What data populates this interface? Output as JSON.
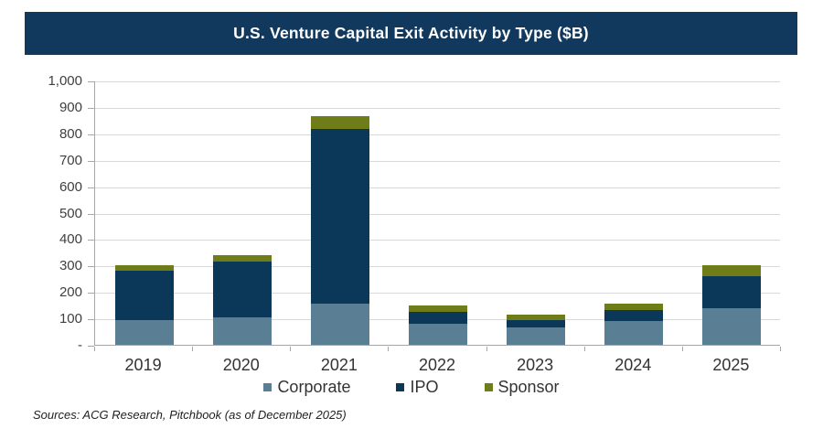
{
  "title_bar": {
    "title": "U.S. Venture Capital Exit Activity by Type ($B)",
    "bg_color": "#11395e",
    "text_color": "#ffffff"
  },
  "colors": {
    "title_bar": "#11395e",
    "corporate": "#5a7e93",
    "ipo": "#0b3859",
    "sponsor": "#6e7d17",
    "gridline": "#d9d9d9",
    "axis": "#a6a6a6",
    "tick_text": "#3f3f3f"
  },
  "chart_data": {
    "type": "bar",
    "stacked": true,
    "title": "U.S. Venture Capital Exit Activity by Type ($B)",
    "categories": [
      "2019",
      "2020",
      "2021",
      "2022",
      "2023",
      "2024",
      "2025"
    ],
    "series": [
      {
        "name": "Corporate",
        "color": "#5a7e93",
        "values": [
          95,
          105,
          155,
          80,
          65,
          90,
          140
        ]
      },
      {
        "name": "IPO",
        "color": "#0b3859",
        "values": [
          185,
          210,
          660,
          45,
          30,
          40,
          120
        ]
      },
      {
        "name": "Sponsor",
        "color": "#6e7d17",
        "values": [
          20,
          25,
          50,
          25,
          20,
          25,
          40
        ]
      }
    ],
    "stack_totals": [
      300,
      340,
      865,
      150,
      115,
      155,
      300
    ],
    "xlabel": "",
    "ylabel": "",
    "ylim": [
      0,
      1000
    ],
    "y_tick_labels": [
      "1,000",
      "900",
      "800",
      "700",
      "600",
      "500",
      "400",
      "300",
      "200",
      "100",
      "-"
    ],
    "grid": true,
    "legend_position": "bottom"
  },
  "footer": {
    "source_note": "Sources: ACG Research, Pitchbook (as of December 2025)"
  }
}
